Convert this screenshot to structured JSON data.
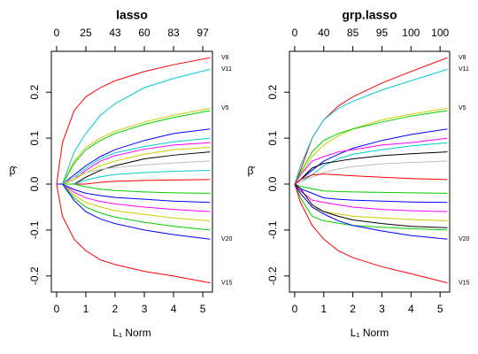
{
  "chart_data": [
    {
      "type": "line",
      "title": "lasso",
      "xlabel": "L₁ Norm",
      "ylabel": "β̂",
      "x": [
        0,
        0.2,
        0.6,
        1,
        1.5,
        2,
        3,
        4,
        5.25
      ],
      "xlim": [
        -0.18,
        5.33
      ],
      "ylim": [
        -0.235,
        0.289
      ],
      "xticks": [
        0,
        1,
        2,
        3,
        4,
        5
      ],
      "x2ticks": [
        {
          "value": 0,
          "label": "0"
        },
        {
          "value": 1,
          "label": "25"
        },
        {
          "value": 2,
          "label": "43"
        },
        {
          "value": 3,
          "label": "60"
        },
        {
          "value": 4,
          "label": "83"
        },
        {
          "value": 5,
          "label": "97"
        }
      ],
      "yticks": [
        -0.2,
        -0.1,
        {
          "value": 0,
          "label": "0.0"
        },
        0.1,
        0.2
      ],
      "series": [
        {
          "name": "V8",
          "color": "#ff0000",
          "values": [
            0,
            0.09,
            0.16,
            0.19,
            0.21,
            0.225,
            0.245,
            0.26,
            0.275
          ]
        },
        {
          "name": "V11",
          "color": "#00cdcd",
          "values": [
            0,
            0,
            0.07,
            0.11,
            0.15,
            0.175,
            0.21,
            0.23,
            0.25
          ]
        },
        {
          "name": "V5",
          "color": "#cdcd00",
          "values": [
            0,
            0,
            0.05,
            0.08,
            0.1,
            0.115,
            0.135,
            0.15,
            0.165
          ]
        },
        {
          "color": "#00cd00",
          "values": [
            0,
            0,
            0.045,
            0.075,
            0.095,
            0.11,
            0.13,
            0.145,
            0.16
          ]
        },
        {
          "color": "#0000ff",
          "values": [
            0,
            0,
            0.02,
            0.04,
            0.06,
            0.075,
            0.095,
            0.11,
            0.12
          ]
        },
        {
          "color": "#00cdcd",
          "values": [
            0,
            0,
            0.015,
            0.035,
            0.055,
            0.068,
            0.082,
            0.092,
            0.1
          ]
        },
        {
          "color": "#ff00ff",
          "values": [
            0,
            0,
            0.01,
            0.03,
            0.05,
            0.062,
            0.076,
            0.085,
            0.09
          ]
        },
        {
          "color": "#cdcd00",
          "values": [
            0,
            0,
            0.01,
            0.025,
            0.04,
            0.05,
            0.065,
            0.075,
            0.08
          ]
        },
        {
          "color": "#000000",
          "values": [
            0,
            0,
            0,
            0.015,
            0.03,
            0.04,
            0.055,
            0.063,
            0.07
          ]
        },
        {
          "color": "#bebebe",
          "values": [
            0,
            0,
            0.015,
            0.025,
            0.032,
            0.036,
            0.042,
            0.046,
            0.05
          ]
        },
        {
          "color": "#00cdcd",
          "values": [
            0,
            0,
            0,
            0.009,
            0.016,
            0.021,
            0.025,
            0.028,
            0.03
          ]
        },
        {
          "color": "#ff0000",
          "values": [
            0,
            0,
            0,
            0,
            0.004,
            0.006,
            0.008,
            0.009,
            0.01
          ]
        },
        {
          "color": "#00cd00",
          "values": [
            0,
            0,
            0,
            -0.006,
            -0.011,
            -0.014,
            -0.017,
            -0.019,
            -0.02
          ]
        },
        {
          "color": "#0000ff",
          "values": [
            0,
            0,
            -0.012,
            -0.02,
            -0.025,
            -0.029,
            -0.033,
            -0.037,
            -0.04
          ]
        },
        {
          "color": "#ff00ff",
          "values": [
            0,
            0,
            -0.018,
            -0.03,
            -0.038,
            -0.043,
            -0.05,
            -0.055,
            -0.06
          ]
        },
        {
          "color": "#cdcd00",
          "values": [
            0,
            0,
            -0.024,
            -0.04,
            -0.05,
            -0.058,
            -0.066,
            -0.074,
            -0.08
          ]
        },
        {
          "color": "#00cd00",
          "values": [
            0,
            0,
            -0.03,
            -0.05,
            -0.063,
            -0.072,
            -0.083,
            -0.092,
            -0.1
          ]
        },
        {
          "name": "V20",
          "color": "#0000ff",
          "values": [
            0,
            0,
            -0.036,
            -0.06,
            -0.076,
            -0.086,
            -0.1,
            -0.11,
            -0.12
          ]
        },
        {
          "name": "V15",
          "color": "#ff0000",
          "values": [
            0,
            -0.07,
            -0.12,
            -0.145,
            -0.165,
            -0.175,
            -0.19,
            -0.2,
            -0.215
          ]
        }
      ]
    },
    {
      "type": "line",
      "title": "grp.lasso",
      "xlabel": "L₁ Norm",
      "ylabel": "β̂",
      "x": [
        0,
        0.2,
        0.6,
        1,
        1.5,
        2,
        3,
        4,
        5.25
      ],
      "xlim": [
        -0.18,
        5.33
      ],
      "ylim": [
        -0.235,
        0.289
      ],
      "xticks": [
        0,
        1,
        2,
        3,
        4,
        5
      ],
      "x2ticks": [
        {
          "value": 0,
          "label": "0"
        },
        {
          "value": 1,
          "label": "40"
        },
        {
          "value": 2,
          "label": "85"
        },
        {
          "value": 3,
          "label": "95"
        },
        {
          "value": 4,
          "label": "100"
        },
        {
          "value": 5,
          "label": "100"
        }
      ],
      "yticks": [
        -0.2,
        -0.1,
        {
          "value": 0,
          "label": "0.0"
        },
        0.1,
        0.2
      ],
      "series": [
        {
          "name": "V8",
          "color": "#ff0000",
          "values": [
            0,
            0.03,
            0.1,
            0.14,
            0.17,
            0.19,
            0.22,
            0.245,
            0.275
          ]
        },
        {
          "name": "V11",
          "color": "#00cdcd",
          "values": [
            0,
            0.04,
            0.1,
            0.14,
            0.165,
            0.18,
            0.205,
            0.225,
            0.25
          ]
        },
        {
          "name": "V5",
          "color": "#cdcd00",
          "values": [
            0,
            0.02,
            0.06,
            0.085,
            0.105,
            0.12,
            0.14,
            0.152,
            0.165
          ]
        },
        {
          "color": "#00cd00",
          "values": [
            0,
            0.025,
            0.07,
            0.095,
            0.11,
            0.12,
            0.135,
            0.148,
            0.16
          ]
        },
        {
          "color": "#0000ff",
          "values": [
            0,
            0.01,
            0.03,
            0.05,
            0.065,
            0.078,
            0.095,
            0.108,
            0.12
          ]
        },
        {
          "color": "#ff00ff",
          "values": [
            0,
            0.02,
            0.05,
            0.06,
            0.07,
            0.075,
            0.085,
            0.09,
            0.1
          ]
        },
        {
          "color": "#00cdcd",
          "values": [
            0,
            0.005,
            0.02,
            0.04,
            0.055,
            0.065,
            0.075,
            0.083,
            0.09
          ]
        },
        {
          "color": "#000000",
          "values": [
            0,
            0.01,
            0.035,
            0.045,
            0.05,
            0.055,
            0.062,
            0.066,
            0.07
          ]
        },
        {
          "color": "#bebebe",
          "values": [
            0,
            0.005,
            0.015,
            0.025,
            0.033,
            0.038,
            0.044,
            0.047,
            0.05
          ]
        },
        {
          "color": "#ff0000",
          "values": [
            0,
            0.01,
            0.02,
            0.022,
            0.02,
            0.018,
            0.015,
            0.012,
            0.01
          ]
        },
        {
          "color": "#00cd00",
          "values": [
            0,
            -0.005,
            -0.01,
            -0.015,
            -0.016,
            -0.017,
            -0.018,
            -0.019,
            -0.02
          ]
        },
        {
          "color": "#0000ff",
          "values": [
            0,
            -0.01,
            -0.02,
            -0.03,
            -0.033,
            -0.035,
            -0.037,
            -0.039,
            -0.04
          ]
        },
        {
          "color": "#ff00ff",
          "values": [
            0,
            -0.015,
            -0.035,
            -0.04,
            -0.045,
            -0.05,
            -0.055,
            -0.058,
            -0.06
          ]
        },
        {
          "color": "#cdcd00",
          "values": [
            0,
            -0.02,
            -0.05,
            -0.06,
            -0.065,
            -0.07,
            -0.074,
            -0.077,
            -0.08
          ]
        },
        {
          "color": "#000000",
          "values": [
            0,
            -0.01,
            -0.045,
            -0.06,
            -0.07,
            -0.078,
            -0.086,
            -0.092,
            -0.095
          ]
        },
        {
          "color": "#00cd00",
          "values": [
            0,
            -0.03,
            -0.07,
            -0.08,
            -0.085,
            -0.09,
            -0.094,
            -0.097,
            -0.1
          ]
        },
        {
          "name": "V20",
          "color": "#0000ff",
          "values": [
            0,
            -0.02,
            -0.05,
            -0.065,
            -0.08,
            -0.09,
            -0.102,
            -0.112,
            -0.12
          ]
        },
        {
          "name": "V15",
          "color": "#ff0000",
          "values": [
            0,
            -0.04,
            -0.09,
            -0.12,
            -0.145,
            -0.16,
            -0.18,
            -0.195,
            -0.215
          ]
        }
      ]
    }
  ]
}
